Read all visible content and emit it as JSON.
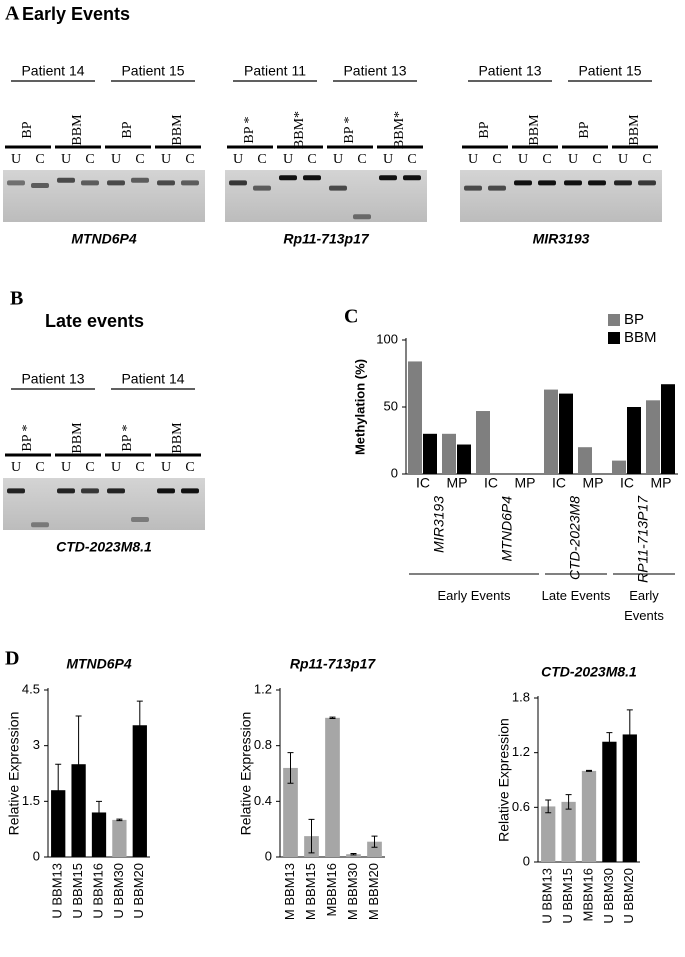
{
  "panel_a": {
    "letter": "A",
    "title": "Early Events",
    "gels": [
      {
        "patients": [
          "Patient 14",
          "Patient 15"
        ],
        "groups": [
          "BP",
          "BBM",
          "BP",
          "BBM"
        ],
        "lanes": [
          "U",
          "C"
        ],
        "gene": "MTND6P4"
      },
      {
        "patients": [
          "Patient 11",
          "Patient 13"
        ],
        "groups": [
          "BP *",
          "BBM*",
          "BP *",
          "BBM*"
        ],
        "lanes": [
          "U",
          "C"
        ],
        "gene": "Rp11-713p17"
      },
      {
        "patients": [
          "Patient 13",
          "Patient 15"
        ],
        "groups": [
          "BP",
          "BBM",
          "BP",
          "BBM"
        ],
        "lanes": [
          "U",
          "C"
        ],
        "gene": "MIR3193"
      }
    ]
  },
  "panel_b": {
    "letter": "B",
    "title": "Late events",
    "gels": [
      {
        "patients": [
          "Patient 13",
          "Patient 14"
        ],
        "groups": [
          "BP *",
          "BBM",
          "BP *",
          "BBM"
        ],
        "lanes": [
          "U",
          "C"
        ],
        "gene": "CTD-2023M8.1"
      }
    ]
  },
  "chart_data": [
    {
      "type": "bar",
      "panel_label": "C",
      "ylabel": "Methylation (%)",
      "categories": [
        "IC",
        "MP",
        "IC",
        "MP",
        "IC",
        "MP",
        "IC",
        "MP"
      ],
      "genes": [
        "MIR3193",
        "MTND6P4",
        "CTD-2023M8",
        "RP11-713P17"
      ],
      "event_groups": [
        "Early Events",
        "Late Events",
        "Early Events"
      ],
      "series": [
        {
          "name": "BP",
          "color": "#7f7f7f",
          "values": [
            84,
            30,
            47,
            null,
            63,
            20,
            10,
            55
          ]
        },
        {
          "name": "BBM",
          "color": "#000000",
          "values": [
            30,
            22,
            null,
            null,
            60,
            null,
            50,
            67
          ]
        }
      ],
      "ylim": [
        0,
        100
      ],
      "yticks": [
        0,
        50,
        100
      ],
      "legend": "upper right"
    },
    {
      "type": "bar",
      "panel_label": "D",
      "title": "MTND6P4",
      "ylabel": "Relative Expression",
      "categories": [
        "U BBM13",
        "U BBM15",
        "U BBM16",
        "U BBM30",
        "U BBM20"
      ],
      "values": [
        1.8,
        2.5,
        1.2,
        1.0,
        3.55
      ],
      "errors": [
        0.7,
        1.3,
        0.3,
        0.02,
        0.65
      ],
      "colors": [
        "#000000",
        "#000000",
        "#000000",
        "#a6a6a6",
        "#000000"
      ],
      "ylim": [
        0,
        4.5
      ],
      "yticks": [
        0,
        1.5,
        3,
        4.5
      ]
    },
    {
      "type": "bar",
      "title": "Rp11-713p17",
      "ylabel": "Relative Expression",
      "categories": [
        "M BBM13",
        "M BBM15",
        "MBBM16",
        "M BBM30",
        "M BBM20"
      ],
      "values": [
        0.64,
        0.15,
        1.0,
        0.02,
        0.11
      ],
      "errors": [
        0.11,
        0.12,
        0.005,
        0.005,
        0.04
      ],
      "colors": [
        "#a6a6a6",
        "#a6a6a6",
        "#a6a6a6",
        "#a6a6a6",
        "#a6a6a6"
      ],
      "ylim": [
        0,
        1.2
      ],
      "yticks": [
        0,
        0.4,
        0.8,
        1.2
      ]
    },
    {
      "type": "bar",
      "title": "CTD-2023M8.1",
      "ylabel": "Relative Expression",
      "categories": [
        "U BBM13",
        "U BBM15",
        "MBBM16",
        "U BBM30",
        "U BBM20"
      ],
      "values": [
        0.61,
        0.66,
        1.0,
        1.32,
        1.4
      ],
      "errors": [
        0.07,
        0.08,
        0.005,
        0.1,
        0.27
      ],
      "colors": [
        "#a6a6a6",
        "#a6a6a6",
        "#a6a6a6",
        "#000000",
        "#000000"
      ],
      "ylim": [
        0,
        1.8
      ],
      "yticks": [
        0,
        0.6,
        1.2,
        1.8
      ]
    }
  ]
}
